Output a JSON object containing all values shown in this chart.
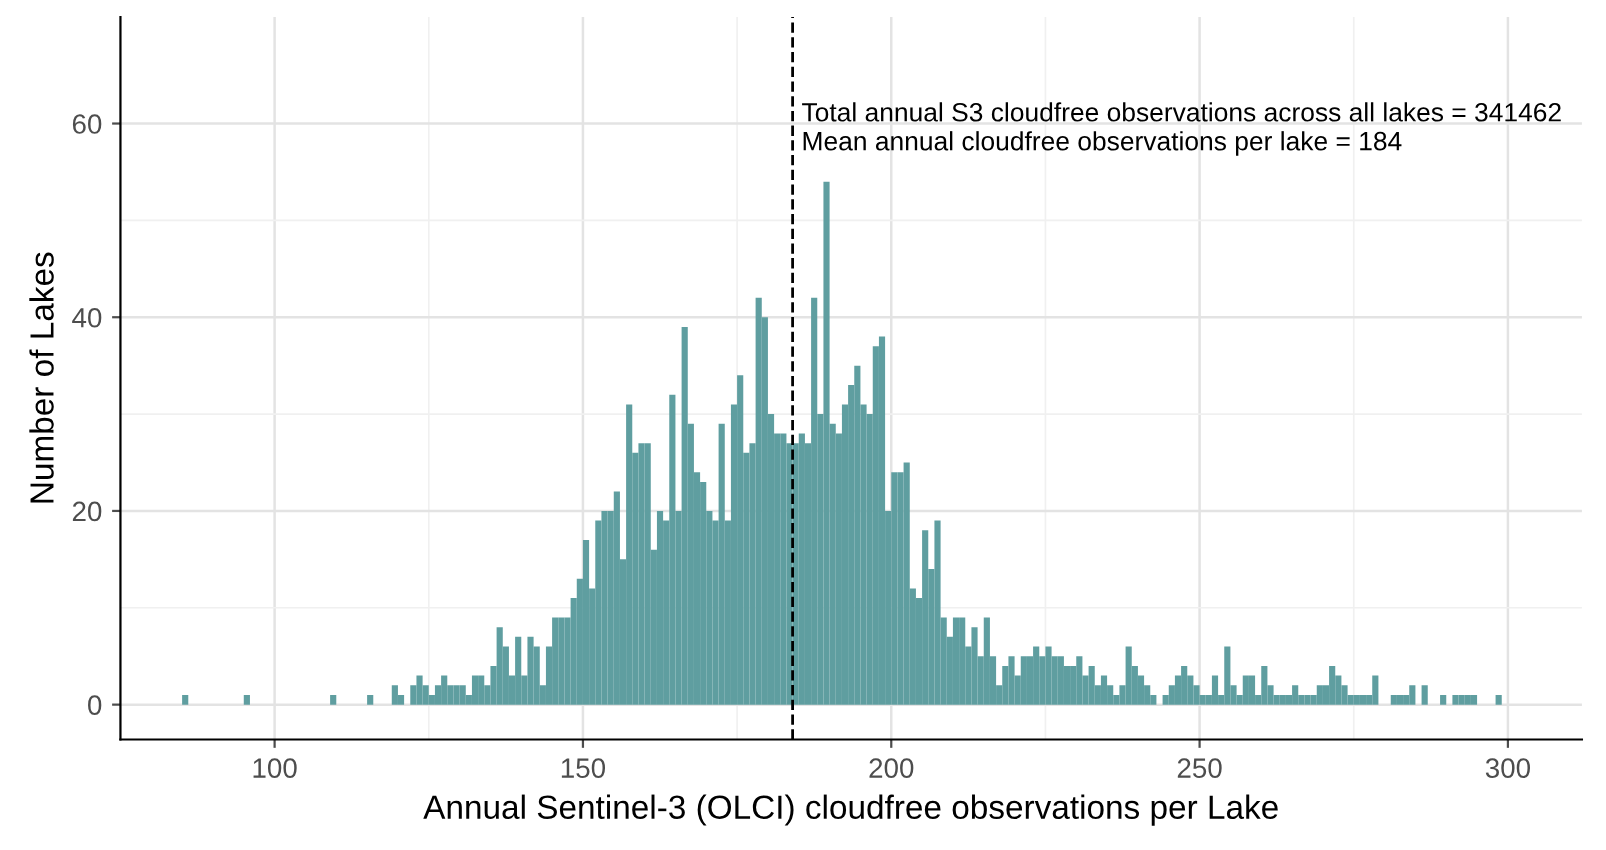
{
  "chart_data": {
    "type": "histogram",
    "xlabel": "Annual Sentinel-3 (OLCI) cloudfree observations per Lake",
    "ylabel": "Number of Lakes",
    "bins": [
      85,
      86,
      87,
      88,
      89,
      90,
      91,
      92,
      93,
      94,
      95,
      96,
      97,
      98,
      99,
      100,
      101,
      102,
      103,
      104,
      105,
      106,
      107,
      108,
      109,
      110,
      111,
      112,
      113,
      114,
      115,
      116,
      117,
      118,
      119,
      120,
      121,
      122,
      123,
      124,
      125,
      126,
      127,
      128,
      129,
      130,
      131,
      132,
      133,
      134,
      135,
      136,
      137,
      138,
      139,
      140,
      141,
      142,
      143,
      144,
      145,
      146,
      147,
      148,
      149,
      150,
      151,
      152,
      153,
      154,
      155,
      156,
      157,
      158,
      159,
      160,
      161,
      162,
      163,
      164,
      165,
      166,
      167,
      168,
      169,
      170,
      171,
      172,
      173,
      174,
      175,
      176,
      177,
      178,
      179,
      180,
      181,
      182,
      183,
      184,
      185,
      186,
      187,
      188,
      189,
      190,
      191,
      192,
      193,
      194,
      195,
      196,
      197,
      198,
      199,
      200,
      201,
      202,
      203,
      204,
      205,
      206,
      207,
      208,
      209,
      210,
      211,
      212,
      213,
      214,
      215,
      216,
      217,
      218,
      219,
      220,
      221,
      222,
      223,
      224,
      225,
      226,
      227,
      228,
      229,
      230,
      231,
      232,
      233,
      234,
      235,
      236,
      237,
      238,
      239,
      240,
      241,
      242,
      243,
      244,
      245,
      246,
      247,
      248,
      249,
      250,
      251,
      252,
      253,
      254,
      255,
      256,
      257,
      258,
      259,
      260,
      261,
      262,
      263,
      264,
      265,
      266,
      267,
      268,
      269,
      270,
      271,
      272,
      273,
      274,
      275,
      276,
      277,
      278,
      279,
      280,
      281,
      282,
      283,
      284,
      285,
      286,
      287,
      288,
      289,
      290,
      291,
      292,
      293,
      294,
      295,
      296,
      297,
      298,
      299
    ],
    "values": [
      1,
      0,
      0,
      0,
      0,
      0,
      0,
      0,
      0,
      0,
      1,
      0,
      0,
      0,
      0,
      0,
      0,
      0,
      0,
      0,
      0,
      0,
      0,
      0,
      1,
      0,
      0,
      0,
      0,
      0,
      1,
      0,
      0,
      0,
      2,
      1,
      0,
      2,
      3,
      2,
      1,
      2,
      3,
      2,
      2,
      2,
      1,
      3,
      3,
      2,
      4,
      8,
      6,
      3,
      7,
      3,
      7,
      6,
      2,
      6,
      9,
      9,
      9,
      11,
      13,
      17,
      12,
      19,
      20,
      20,
      22,
      15,
      31,
      26,
      27,
      27,
      16,
      20,
      19,
      32,
      20,
      39,
      29,
      24,
      23,
      20,
      19,
      29,
      19,
      31,
      34,
      26,
      27,
      42,
      40,
      30,
      28,
      28,
      27,
      27,
      28,
      27,
      42,
      30,
      54,
      29,
      28,
      31,
      33,
      35,
      31,
      30,
      37,
      38,
      20,
      24,
      24,
      25,
      12,
      11,
      18,
      14,
      19,
      9,
      7,
      9,
      9,
      6,
      8,
      5,
      9,
      5,
      2,
      4,
      5,
      3,
      5,
      5,
      6,
      5,
      6,
      5,
      5,
      4,
      4,
      5,
      3,
      4,
      2,
      3,
      2,
      1,
      2,
      6,
      4,
      3,
      2,
      1,
      0,
      1,
      2,
      3,
      4,
      3,
      2,
      1,
      1,
      3,
      1,
      6,
      2,
      1,
      3,
      3,
      1,
      4,
      2,
      1,
      1,
      1,
      2,
      1,
      1,
      1,
      2,
      2,
      4,
      3,
      2,
      1,
      1,
      1,
      1,
      3,
      0,
      0,
      1,
      1,
      1,
      2,
      0,
      2,
      0,
      0,
      1,
      0,
      1,
      1,
      1,
      1,
      0,
      0,
      0,
      1
    ],
    "color": "#5f9ea0",
    "xlim": [
      75,
      312
    ],
    "ylim": [
      -3.6,
      71
    ],
    "xticks": [
      100,
      150,
      200,
      250,
      300
    ],
    "yticks": [
      0,
      20,
      40,
      60
    ],
    "grid": true,
    "ref_lines": [
      {
        "axis": "x",
        "value": 184,
        "color": "#000000",
        "line_style": "dashed"
      }
    ],
    "annotations": [
      "Total annual S3 cloudfree observations across all lakes = 341462",
      "Mean annual cloudfree observations per lake = 184"
    ]
  }
}
